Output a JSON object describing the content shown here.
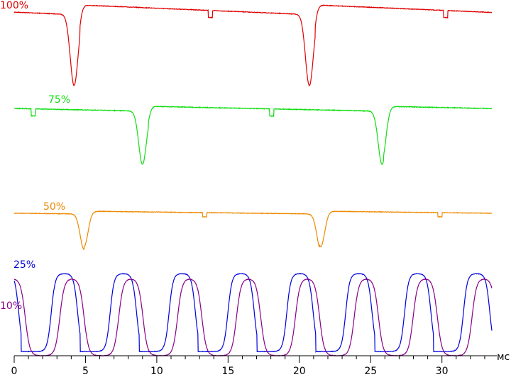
{
  "chart_data": {
    "type": "line",
    "x_unit_label": "мс",
    "xlim": [
      0,
      33.5
    ],
    "x_ticks": [
      0,
      5,
      10,
      15,
      20,
      25,
      30
    ],
    "series": [
      {
        "name": "100%",
        "color": "#e00000"
      },
      {
        "name": "75%",
        "color": "#11dd11"
      },
      {
        "name": "50%",
        "color": "#ee8800"
      },
      {
        "name": "25%",
        "color": "#0000dd"
      },
      {
        "name": "10%",
        "color": "#880088"
      }
    ]
  }
}
